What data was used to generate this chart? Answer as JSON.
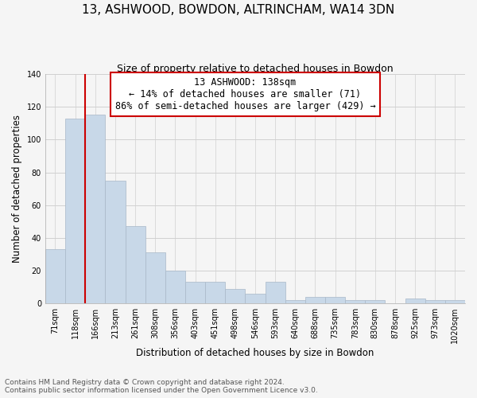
{
  "title": "13, ASHWOOD, BOWDON, ALTRINCHAM, WA14 3DN",
  "subtitle": "Size of property relative to detached houses in Bowdon",
  "xlabel": "Distribution of detached houses by size in Bowdon",
  "ylabel": "Number of detached properties",
  "footer_line1": "Contains HM Land Registry data © Crown copyright and database right 2024.",
  "footer_line2": "Contains public sector information licensed under the Open Government Licence v3.0.",
  "categories": [
    "71sqm",
    "118sqm",
    "166sqm",
    "213sqm",
    "261sqm",
    "308sqm",
    "356sqm",
    "403sqm",
    "451sqm",
    "498sqm",
    "546sqm",
    "593sqm",
    "640sqm",
    "688sqm",
    "735sqm",
    "783sqm",
    "830sqm",
    "878sqm",
    "925sqm",
    "973sqm",
    "1020sqm"
  ],
  "values": [
    33,
    113,
    115,
    75,
    47,
    31,
    20,
    13,
    13,
    9,
    6,
    13,
    2,
    4,
    4,
    2,
    2,
    0,
    3,
    2,
    2
  ],
  "bar_color": "#c8d8e8",
  "bar_edge_color": "#a8b8c8",
  "highlight_color": "#cc0000",
  "annotation_line1": "13 ASHWOOD: 138sqm",
  "annotation_line2": "← 14% of detached houses are smaller (71)",
  "annotation_line3": "86% of semi-detached houses are larger (429) →",
  "annotation_box_color": "#ffffff",
  "annotation_box_edge": "#cc0000",
  "ylim": [
    0,
    140
  ],
  "yticks": [
    0,
    20,
    40,
    60,
    80,
    100,
    120,
    140
  ],
  "background_color": "#f5f5f5",
  "plot_bg_color": "#f5f5f5",
  "grid_color": "#d0d0d0",
  "title_fontsize": 11,
  "subtitle_fontsize": 9,
  "axis_label_fontsize": 8.5,
  "tick_fontsize": 7,
  "annotation_fontsize": 8.5,
  "footer_fontsize": 6.5
}
